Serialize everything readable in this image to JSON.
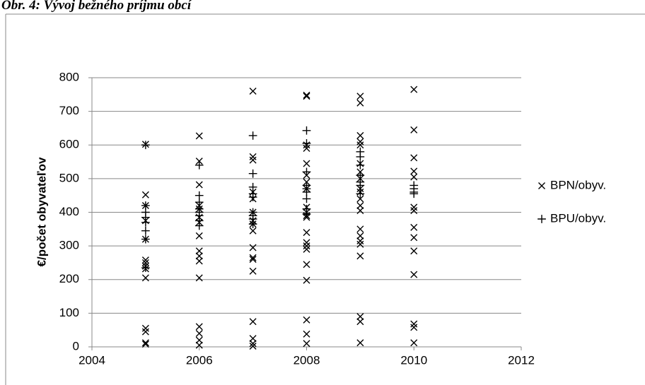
{
  "chart_data": {
    "type": "scatter",
    "title": "Obr. 4: Vývoj bežného príjmu obcí",
    "y_label": "€/počet obyvateľov",
    "xlim": [
      2004,
      2012
    ],
    "xticks": [
      2004,
      2006,
      2008,
      2010,
      2012
    ],
    "ylim": [
      0,
      800
    ],
    "yticks": [
      0,
      100,
      200,
      300,
      400,
      500,
      600,
      700,
      800
    ],
    "grid": true,
    "legend": "right",
    "series": [
      {
        "name": "BPN/obyv.",
        "color": "#000000",
        "marker": "x",
        "x": [
          2005,
          2005,
          2005,
          2005,
          2005,
          2005,
          2005,
          2005,
          2005,
          2005,
          2005,
          2005,
          2005,
          2005,
          2006,
          2006,
          2006,
          2006,
          2006,
          2006,
          2006,
          2006,
          2006,
          2006,
          2006,
          2006,
          2006,
          2006,
          2006,
          2006,
          2007,
          2007,
          2007,
          2007,
          2007,
          2007,
          2007,
          2007,
          2007,
          2007,
          2007,
          2007,
          2007,
          2007,
          2007,
          2007,
          2007,
          2008,
          2008,
          2008,
          2008,
          2008,
          2008,
          2008,
          2008,
          2008,
          2008,
          2008,
          2008,
          2008,
          2008,
          2008,
          2008,
          2008,
          2008,
          2008,
          2008,
          2008,
          2009,
          2009,
          2009,
          2009,
          2009,
          2009,
          2009,
          2009,
          2009,
          2009,
          2009,
          2009,
          2009,
          2009,
          2009,
          2009,
          2009,
          2009,
          2009,
          2009,
          2009,
          2010,
          2010,
          2010,
          2010,
          2010,
          2010,
          2010,
          2010,
          2010,
          2010,
          2010,
          2010,
          2010,
          2010
        ],
        "values": [
          602,
          452,
          420,
          375,
          320,
          258,
          250,
          240,
          232,
          205,
          55,
          45,
          12,
          8,
          627,
          552,
          482,
          420,
          410,
          385,
          370,
          330,
          285,
          270,
          255,
          205,
          60,
          40,
          20,
          5,
          760,
          565,
          555,
          460,
          440,
          400,
          375,
          365,
          345,
          295,
          265,
          260,
          225,
          75,
          25,
          10,
          2,
          748,
          745,
          600,
          590,
          545,
          510,
          490,
          470,
          415,
          400,
          390,
          385,
          340,
          310,
          300,
          290,
          245,
          198,
          80,
          38,
          10,
          745,
          725,
          628,
          610,
          600,
          545,
          520,
          500,
          470,
          460,
          440,
          420,
          405,
          350,
          330,
          315,
          305,
          270,
          90,
          75,
          12,
          765,
          645,
          562,
          522,
          505,
          415,
          405,
          355,
          325,
          285,
          215,
          68,
          58,
          12
        ]
      },
      {
        "name": "BPU/obyv.",
        "color": "#000000",
        "marker": "+",
        "x": [
          2005,
          2005,
          2005,
          2005,
          2005,
          2005,
          2005,
          2005,
          2006,
          2006,
          2006,
          2006,
          2006,
          2006,
          2006,
          2006,
          2007,
          2007,
          2007,
          2007,
          2007,
          2007,
          2007,
          2007,
          2007,
          2008,
          2008,
          2008,
          2008,
          2008,
          2008,
          2008,
          2008,
          2008,
          2009,
          2009,
          2009,
          2009,
          2009,
          2009,
          2009,
          2010,
          2010,
          2010,
          2010
        ],
        "values": [
          600,
          420,
          400,
          385,
          370,
          345,
          320,
          235,
          540,
          450,
          430,
          410,
          400,
          390,
          375,
          360,
          628,
          515,
          475,
          455,
          445,
          400,
          390,
          380,
          365,
          643,
          605,
          520,
          480,
          470,
          460,
          440,
          410,
          395,
          580,
          565,
          540,
          510,
          490,
          480,
          455,
          480,
          470,
          455,
          460
        ]
      }
    ]
  }
}
